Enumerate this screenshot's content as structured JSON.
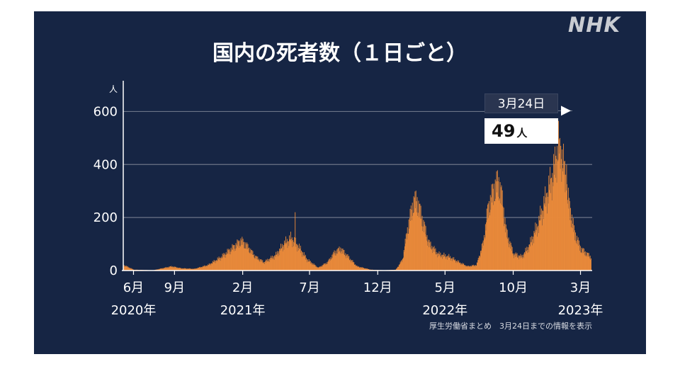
{
  "logo": "NHK",
  "title": "国内の死者数（１日ごと）",
  "source": "厚生労働省まとめ　3月24日までの情報を表示",
  "callout": {
    "date": "3月24日",
    "value": "49",
    "unit": "人"
  },
  "colors": {
    "background": "#162544",
    "bars": "#e8893a",
    "grid": "#6b7487",
    "text": "#ffffff"
  },
  "chart_data": {
    "type": "bar",
    "title": "国内の死者数（１日ごと）",
    "ylabel": "人",
    "ylim": [
      0,
      700
    ],
    "yticks": [
      0,
      200,
      400,
      600
    ],
    "xrange": [
      "2020-05-09",
      "2023-03-24"
    ],
    "xticks": [
      {
        "date": "2020-06-01",
        "label": "6月",
        "year": "2020年"
      },
      {
        "date": "2020-09-01",
        "label": "9月",
        "year": ""
      },
      {
        "date": "2021-02-01",
        "label": "2月",
        "year": "2021年"
      },
      {
        "date": "2021-07-01",
        "label": "7月",
        "year": ""
      },
      {
        "date": "2021-12-01",
        "label": "12月",
        "year": ""
      },
      {
        "date": "2022-05-01",
        "label": "5月",
        "year": "2022年"
      },
      {
        "date": "2022-10-01",
        "label": "10月",
        "year": ""
      },
      {
        "date": "2023-03-01",
        "label": "3月",
        "year": "2023年"
      }
    ],
    "series": [
      {
        "points": [
          [
            "2020-05-09",
            20
          ],
          [
            "2020-05-20",
            12
          ],
          [
            "2020-06-01",
            3
          ],
          [
            "2020-07-15",
            1
          ],
          [
            "2020-08-10",
            10
          ],
          [
            "2020-08-25",
            15
          ],
          [
            "2020-09-15",
            8
          ],
          [
            "2020-10-15",
            6
          ],
          [
            "2020-11-15",
            20
          ],
          [
            "2020-12-15",
            50
          ],
          [
            "2021-01-10",
            85
          ],
          [
            "2021-01-28",
            110
          ],
          [
            "2021-02-10",
            90
          ],
          [
            "2021-03-01",
            50
          ],
          [
            "2021-03-20",
            30
          ],
          [
            "2021-04-15",
            55
          ],
          [
            "2021-05-05",
            100
          ],
          [
            "2021-05-20",
            120
          ],
          [
            "2021-06-05",
            90
          ],
          [
            "2021-06-25",
            40
          ],
          [
            "2021-07-20",
            10
          ],
          [
            "2021-08-10",
            30
          ],
          [
            "2021-08-25",
            65
          ],
          [
            "2021-09-08",
            80
          ],
          [
            "2021-09-25",
            50
          ],
          [
            "2021-10-15",
            15
          ],
          [
            "2021-11-15",
            3
          ],
          [
            "2021-12-15",
            1
          ],
          [
            "2022-01-10",
            3
          ],
          [
            "2022-01-25",
            40
          ],
          [
            "2022-02-05",
            150
          ],
          [
            "2022-02-18",
            250
          ],
          [
            "2022-02-26",
            260
          ],
          [
            "2022-03-10",
            190
          ],
          [
            "2022-03-25",
            100
          ],
          [
            "2022-04-15",
            60
          ],
          [
            "2022-05-10",
            50
          ],
          [
            "2022-06-01",
            30
          ],
          [
            "2022-06-20",
            15
          ],
          [
            "2022-07-10",
            20
          ],
          [
            "2022-07-25",
            100
          ],
          [
            "2022-08-05",
            230
          ],
          [
            "2022-08-18",
            300
          ],
          [
            "2022-08-28",
            330
          ],
          [
            "2022-09-05",
            270
          ],
          [
            "2022-09-15",
            140
          ],
          [
            "2022-10-01",
            60
          ],
          [
            "2022-10-20",
            50
          ],
          [
            "2022-11-05",
            90
          ],
          [
            "2022-11-25",
            170
          ],
          [
            "2022-12-15",
            280
          ],
          [
            "2023-01-01",
            380
          ],
          [
            "2023-01-10",
            470
          ],
          [
            "2023-01-20",
            410
          ],
          [
            "2023-02-01",
            260
          ],
          [
            "2023-02-15",
            140
          ],
          [
            "2023-03-01",
            80
          ],
          [
            "2023-03-24",
            49
          ]
        ],
        "spikes": [
          [
            "2021-05-29",
            220
          ],
          [
            "2023-01-13",
            500
          ],
          [
            "2023-01-28",
            400
          ]
        ]
      }
    ],
    "grid": true,
    "legend": "none"
  }
}
